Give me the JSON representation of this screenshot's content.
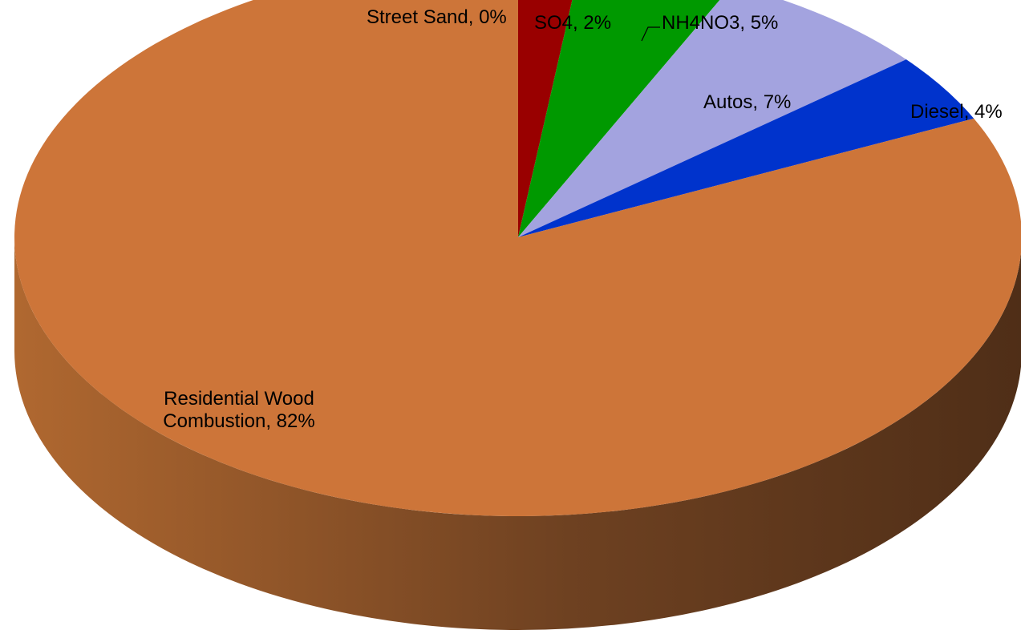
{
  "chart_data": {
    "type": "pie",
    "style": "3d",
    "slices": [
      {
        "label": "Street Sand",
        "value": 0,
        "display": "Street Sand, 0%",
        "color": "#ffffff"
      },
      {
        "label": "SO4",
        "value": 2,
        "display": "SO4, 2%",
        "color": "#990000"
      },
      {
        "label": "NH4NO3",
        "value": 5,
        "display": "NH4NO3, 5%",
        "color": "#009900"
      },
      {
        "label": "Autos",
        "value": 7,
        "display": "Autos, 7%",
        "color": "#a3a3df"
      },
      {
        "label": "Diesel",
        "value": 4,
        "display": "Diesel, 4%",
        "color": "#0033cc"
      },
      {
        "label": "Residential Wood Combustion",
        "value": 82,
        "display_lines": [
          "Residential Wood",
          "Combustion, 82%"
        ],
        "color": "#cd7539"
      }
    ],
    "side_shading": {
      "light": "#b06830",
      "dark": "#4f2e17"
    }
  }
}
